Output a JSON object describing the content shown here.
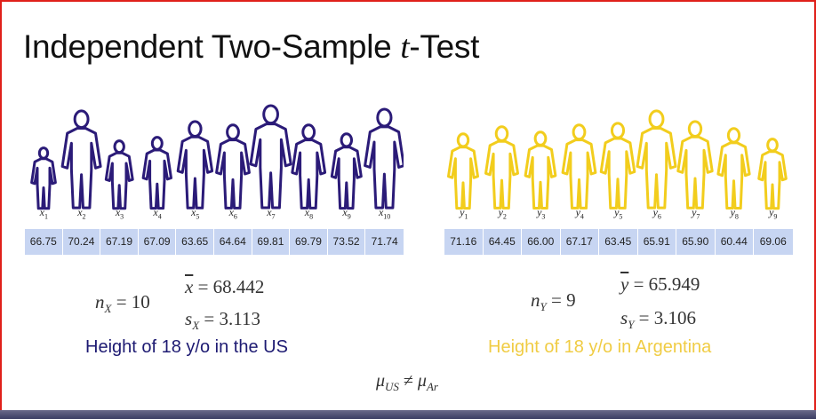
{
  "title": {
    "before": "Independent Two-Sample ",
    "italic": "t",
    "after": "-Test"
  },
  "us": {
    "color": "#2b1b78",
    "var": "x",
    "subs": [
      "1",
      "2",
      "3",
      "4",
      "5",
      "6",
      "7",
      "8",
      "9",
      "10"
    ],
    "values": [
      "66.75",
      "70.24",
      "67.19",
      "67.09",
      "63.65",
      "64.64",
      "69.81",
      "69.79",
      "73.52",
      "71.74"
    ],
    "n_sym": "n",
    "n_sub": "X",
    "n_rest": " = 10",
    "mean_sym": "x",
    "mean_rest": " = 68.442",
    "sd_sym": "s",
    "sd_sub": "X",
    "sd_rest": " = 3.113",
    "caption": "Height of 18 y/o in the US"
  },
  "ar": {
    "color": "#f2cd1d",
    "var": "y",
    "subs": [
      "1",
      "2",
      "3",
      "4",
      "5",
      "6",
      "7",
      "8",
      "9"
    ],
    "values": [
      "71.16",
      "64.45",
      "66.00",
      "67.17",
      "63.45",
      "65.91",
      "65.90",
      "60.44",
      "69.06"
    ],
    "n_sym": "n",
    "n_sub": "Y",
    "n_rest": " = 9",
    "mean_sym": "y",
    "mean_rest": " = 65.949",
    "sd_sym": "s",
    "sd_sub": "Y",
    "sd_rest": " = 3.106",
    "caption": "Height of 18 y/o in Argentina"
  },
  "hypothesis": {
    "mu": "μ",
    "sub1": "US",
    "op": " ≠ ",
    "sub2": "Ar"
  }
}
